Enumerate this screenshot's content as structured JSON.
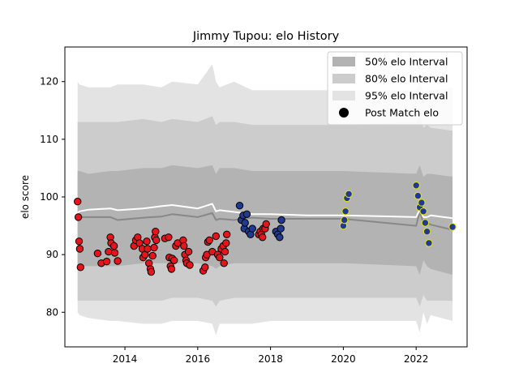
{
  "chart_data": {
    "type": "scatter",
    "title": "Jimmy Tupou: elo History",
    "xlabel": "",
    "ylabel": "elo score",
    "xlim": [
      2012.35,
      2023.4
    ],
    "ylim": [
      74,
      126
    ],
    "xticks": [
      2014,
      2016,
      2018,
      2020,
      2022
    ],
    "yticks": [
      80,
      90,
      100,
      110,
      120
    ],
    "legend": {
      "position": "top-right",
      "entries": [
        {
          "label": "50% elo Interval",
          "kind": "band",
          "color": "#b3b3b3"
        },
        {
          "label": "80% elo Interval",
          "kind": "band",
          "color": "#cccccc"
        },
        {
          "label": "95% elo Interval",
          "kind": "band",
          "color": "#e3e3e3"
        },
        {
          "label": "Post Match elo",
          "kind": "marker",
          "color": "#000000"
        }
      ]
    },
    "colors": {
      "band95": "#e3e3e3",
      "band80": "#cccccc",
      "band50": "#b3b3b3",
      "mean_line": "#888888",
      "trend_line": "#ffffff",
      "red": "#e8141b",
      "blue": "#1f3a93",
      "blue_edge": "#000000",
      "yellow_edge": "#e8e800"
    },
    "bands": {
      "x": [
        2012.7,
        2012.75,
        2013.0,
        2013.6,
        2013.8,
        2014.5,
        2015.0,
        2015.3,
        2016.0,
        2016.4,
        2016.5,
        2016.6,
        2017.0,
        2017.5,
        2018.0,
        2019.0,
        2020.0,
        2022.0,
        2022.1,
        2022.2,
        2022.3,
        2022.4,
        2023.0
      ],
      "lo95": [
        80,
        79.5,
        79,
        78.5,
        78.5,
        78,
        78,
        78.5,
        78.5,
        78,
        76,
        78,
        78,
        78,
        78.5,
        78.5,
        78.5,
        78.5,
        76.5,
        80,
        78,
        79.5,
        78.5
      ],
      "hi95": [
        120,
        119.5,
        119,
        119,
        119.5,
        119.5,
        119,
        120,
        119.5,
        123,
        120,
        119,
        120,
        118.5,
        118.5,
        118.5,
        118.5,
        118.5,
        120,
        118,
        118.5,
        118.5,
        119
      ],
      "lo80": [
        82,
        82,
        82,
        82,
        82,
        82,
        82,
        82.5,
        82.5,
        82,
        81,
        82,
        82.5,
        82.5,
        82.5,
        82.5,
        82.5,
        82.5,
        81,
        83,
        82,
        82,
        82
      ],
      "hi80": [
        113,
        113,
        113,
        113,
        113,
        113.5,
        113,
        113.5,
        113,
        114,
        112.5,
        113,
        113,
        112.5,
        112.5,
        112.5,
        112.5,
        113,
        114,
        112,
        112.5,
        112,
        111.5
      ],
      "lo50": [
        88,
        88,
        88,
        88,
        88,
        88.5,
        88.5,
        88.5,
        88.5,
        88,
        87.5,
        88,
        88.5,
        88.5,
        88.5,
        88.5,
        88.5,
        88,
        86.5,
        89,
        88,
        87.5,
        86.5
      ],
      "hi50": [
        104.5,
        104.5,
        104,
        104.5,
        104.5,
        105,
        105,
        105.5,
        105,
        105.5,
        104,
        105,
        105,
        104.5,
        104.5,
        104.5,
        104.5,
        104,
        105.5,
        103.5,
        104,
        104,
        103.5
      ],
      "mean": [
        96.4,
        96.5,
        96.5,
        96.5,
        96.0,
        96.4,
        96.6,
        97.0,
        96.5,
        97.2,
        96.0,
        96.2,
        96.0,
        96.4,
        96.2,
        96.2,
        96.2,
        95.0,
        97.5,
        95.5,
        95.5,
        95.2,
        94.3
      ],
      "trend": [
        97.2,
        97.5,
        97.8,
        98.0,
        97.7,
        98.0,
        98.4,
        98.6,
        98.0,
        98.8,
        97.5,
        97.7,
        97.4,
        97.0,
        97.0,
        96.8,
        96.8,
        96.5,
        97.8,
        96.5,
        96.5,
        96.8,
        96.3
      ]
    },
    "series": [
      {
        "name": "",
        "color": "red",
        "points": [
          [
            2012.7,
            99.2
          ],
          [
            2012.72,
            96.5
          ],
          [
            2012.74,
            92.3
          ],
          [
            2012.76,
            91.0
          ],
          [
            2012.78,
            87.8
          ],
          [
            2013.25,
            90.2
          ],
          [
            2013.35,
            88.5
          ],
          [
            2013.5,
            88.8
          ],
          [
            2013.55,
            90.5
          ],
          [
            2013.6,
            93.0
          ],
          [
            2013.62,
            92.0
          ],
          [
            2013.7,
            91.5
          ],
          [
            2013.72,
            90.3
          ],
          [
            2013.8,
            88.9
          ],
          [
            2014.25,
            91.5
          ],
          [
            2014.3,
            92.5
          ],
          [
            2014.35,
            93.0
          ],
          [
            2014.4,
            92.0
          ],
          [
            2014.48,
            91.0
          ],
          [
            2014.5,
            89.5
          ],
          [
            2014.55,
            90.0
          ],
          [
            2014.6,
            92.3
          ],
          [
            2014.62,
            91.0
          ],
          [
            2014.66,
            88.5
          ],
          [
            2014.7,
            87.5
          ],
          [
            2014.72,
            87.0
          ],
          [
            2014.76,
            89.8
          ],
          [
            2014.8,
            91.2
          ],
          [
            2014.82,
            93.0
          ],
          [
            2014.84,
            94.0
          ],
          [
            2014.86,
            92.5
          ],
          [
            2015.1,
            92.8
          ],
          [
            2015.2,
            93.0
          ],
          [
            2015.22,
            89.5
          ],
          [
            2015.25,
            88.0
          ],
          [
            2015.28,
            87.5
          ],
          [
            2015.3,
            89.3
          ],
          [
            2015.35,
            89.0
          ],
          [
            2015.4,
            91.5
          ],
          [
            2015.45,
            92.0
          ],
          [
            2015.6,
            92.5
          ],
          [
            2015.62,
            91.5
          ],
          [
            2015.65,
            90.0
          ],
          [
            2015.68,
            89.0
          ],
          [
            2015.7,
            88.5
          ],
          [
            2015.75,
            90.5
          ],
          [
            2015.78,
            88.2
          ],
          [
            2016.15,
            87.2
          ],
          [
            2016.2,
            87.8
          ],
          [
            2016.22,
            89.5
          ],
          [
            2016.25,
            90.0
          ],
          [
            2016.28,
            92.2
          ],
          [
            2016.32,
            92.5
          ],
          [
            2016.4,
            90.5
          ],
          [
            2016.5,
            93.2
          ],
          [
            2016.55,
            90.0
          ],
          [
            2016.6,
            89.5
          ],
          [
            2016.65,
            91.0
          ],
          [
            2016.7,
            91.5
          ],
          [
            2016.72,
            88.5
          ],
          [
            2016.75,
            90.5
          ],
          [
            2016.78,
            92.0
          ],
          [
            2016.8,
            93.5
          ],
          [
            2017.68,
            93.5
          ],
          [
            2017.72,
            94.0
          ],
          [
            2017.75,
            93.5
          ],
          [
            2017.78,
            93.0
          ],
          [
            2017.8,
            94.5
          ],
          [
            2017.85,
            94.5
          ],
          [
            2017.88,
            95.3
          ]
        ]
      },
      {
        "name": "",
        "color": "blue",
        "points": [
          [
            2017.15,
            98.5
          ],
          [
            2017.2,
            96.0
          ],
          [
            2017.25,
            96.8
          ],
          [
            2017.28,
            94.5
          ],
          [
            2017.3,
            95.5
          ],
          [
            2017.35,
            97.0
          ],
          [
            2017.4,
            94.0
          ],
          [
            2017.45,
            93.5
          ],
          [
            2017.5,
            94.5
          ],
          [
            2018.15,
            94.0
          ],
          [
            2018.2,
            93.5
          ],
          [
            2018.25,
            93.0
          ],
          [
            2018.28,
            94.5
          ],
          [
            2018.3,
            96.0
          ]
        ]
      },
      {
        "name": "",
        "color": "yellow",
        "points": [
          [
            2020.0,
            95.0
          ],
          [
            2020.03,
            96.0
          ],
          [
            2020.06,
            97.5
          ],
          [
            2020.1,
            99.8
          ],
          [
            2020.15,
            100.5
          ],
          [
            2022.0,
            102.0
          ],
          [
            2022.05,
            100.2
          ],
          [
            2022.1,
            98.2
          ],
          [
            2022.15,
            99.0
          ],
          [
            2022.2,
            97.5
          ],
          [
            2022.25,
            95.5
          ],
          [
            2022.3,
            94.0
          ],
          [
            2022.35,
            92.0
          ],
          [
            2023.0,
            94.8
          ]
        ]
      }
    ]
  }
}
